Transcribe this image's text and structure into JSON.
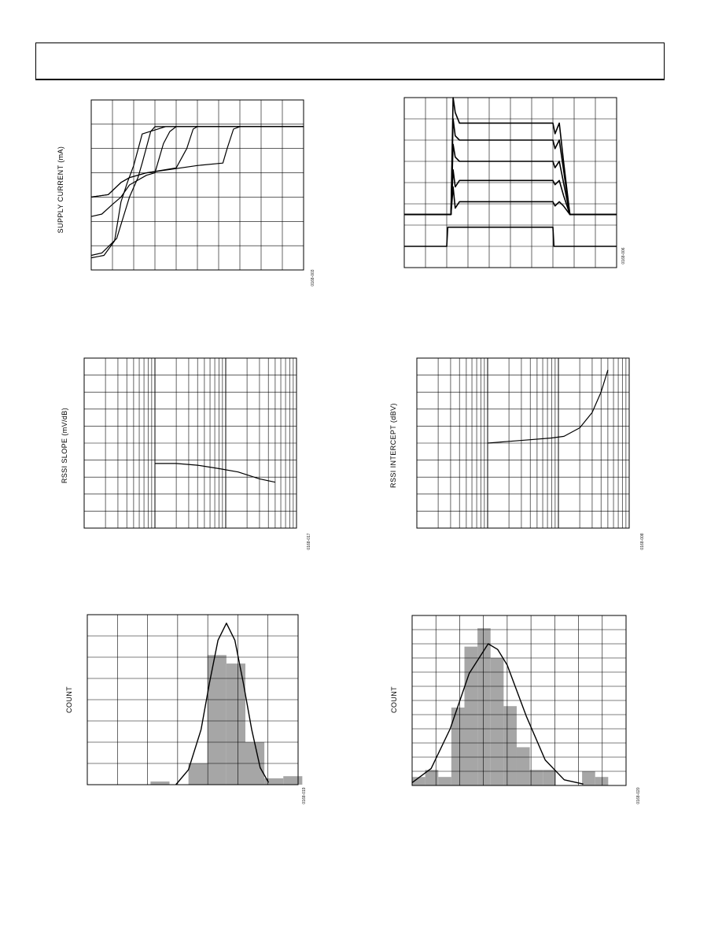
{
  "colors": {
    "ink": "#000000",
    "bar_fill": "#a6a6a6",
    "paper": "#ffffff"
  },
  "charts": [
    {
      "ylabel": "SUPPLY CURRENT (mA)",
      "fignum": "0168-003",
      "chart_data": {
        "type": "line",
        "title": "",
        "xlabel": "",
        "ylabel": "SUPPLY CURRENT (mA)",
        "xlim": [
          0,
          10
        ],
        "ylim": [
          0,
          7
        ],
        "grid": true,
        "series": [
          {
            "x": [
              0.0,
              0.8,
              1.4,
              1.8,
              2.6,
              5.0,
              6.2,
              6.4,
              6.7,
              7.0,
              10.0
            ],
            "y": [
              3.0,
              3.1,
              3.6,
              3.8,
              4.0,
              4.3,
              4.4,
              5.0,
              5.8,
              5.9,
              5.9
            ]
          },
          {
            "x": [
              0.0,
              0.8,
              1.4,
              1.8,
              2.6,
              4.0,
              4.5,
              4.8,
              5.0,
              5.3,
              10.0
            ],
            "y": [
              3.0,
              3.1,
              3.6,
              3.8,
              4.0,
              4.2,
              5.0,
              5.8,
              5.9,
              5.9,
              5.9
            ]
          },
          {
            "x": [
              0.0,
              0.5,
              1.0,
              1.4,
              1.8,
              2.6,
              3.0,
              3.4,
              3.7,
              4.0,
              10.0
            ],
            "y": [
              2.2,
              2.3,
              2.7,
              3.0,
              3.5,
              3.9,
              4.0,
              5.2,
              5.7,
              5.9,
              5.9
            ]
          },
          {
            "x": [
              0.0,
              0.5,
              1.2,
              1.8,
              2.2,
              2.4,
              2.8,
              3.0,
              10.0
            ],
            "y": [
              0.6,
              0.7,
              1.3,
              3.0,
              3.8,
              4.4,
              5.7,
              5.9,
              5.9
            ]
          },
          {
            "x": [
              0.0,
              0.6,
              1.1,
              1.4,
              1.7,
              2.0,
              2.4,
              3.5,
              10.0
            ],
            "y": [
              0.5,
              0.6,
              1.2,
              2.8,
              3.6,
              4.3,
              5.6,
              5.9,
              5.9
            ]
          }
        ]
      }
    },
    {
      "ylabel": "",
      "fignum": "0168-006",
      "chart_data": {
        "type": "line",
        "title": "",
        "xlabel": "",
        "ylabel": "",
        "xlim": [
          0,
          10
        ],
        "ylim": [
          0,
          8
        ],
        "grid": true,
        "series": [
          {
            "x": [
              0.0,
              2.2,
              2.3,
              2.4,
              2.6,
              7.0,
              7.1,
              7.3,
              7.5,
              7.8,
              10.0
            ],
            "y": [
              2.5,
              2.5,
              8.0,
              7.3,
              6.8,
              6.8,
              6.3,
              6.8,
              5.0,
              2.5,
              2.5
            ]
          },
          {
            "x": [
              0.0,
              2.2,
              2.3,
              2.4,
              2.6,
              7.0,
              7.1,
              7.3,
              7.5,
              7.8,
              10.0
            ],
            "y": [
              2.5,
              2.5,
              7.0,
              6.2,
              6.0,
              6.0,
              5.6,
              6.0,
              4.6,
              2.5,
              2.5
            ]
          },
          {
            "x": [
              0.0,
              2.2,
              2.3,
              2.4,
              2.6,
              7.0,
              7.1,
              7.3,
              7.5,
              7.8,
              10.0
            ],
            "y": [
              2.5,
              2.5,
              5.8,
              5.2,
              5.0,
              5.0,
              4.7,
              5.0,
              4.0,
              2.5,
              2.5
            ]
          },
          {
            "x": [
              0.0,
              2.2,
              2.3,
              2.4,
              2.6,
              7.0,
              7.1,
              7.3,
              7.5,
              7.8,
              10.0
            ],
            "y": [
              2.5,
              2.5,
              4.6,
              3.8,
              4.1,
              4.1,
              3.9,
              4.1,
              3.4,
              2.5,
              2.5
            ]
          },
          {
            "x": [
              0.0,
              2.2,
              2.3,
              2.4,
              2.6,
              7.0,
              7.1,
              7.3,
              7.5,
              7.8,
              10.0
            ],
            "y": [
              2.5,
              2.5,
              3.8,
              2.8,
              3.1,
              3.1,
              2.9,
              3.1,
              2.9,
              2.5,
              2.5
            ]
          },
          {
            "x": [
              0.0,
              2.0,
              2.05,
              7.0,
              7.05,
              10.0
            ],
            "y": [
              1.0,
              1.0,
              1.9,
              1.9,
              1.0,
              1.0
            ]
          }
        ]
      }
    },
    {
      "ylabel": "RSSI SLOPE (mV/dB)",
      "fignum": "0168-017",
      "chart_data": {
        "type": "line",
        "title": "",
        "xlabel": "",
        "ylabel": "RSSI SLOPE (mV/dB)",
        "xscale": "log",
        "xlim": [
          1,
          1000
        ],
        "ylim": [
          0,
          10
        ],
        "grid": true,
        "series": [
          {
            "x": [
              10,
              20,
              40,
              80,
              150,
              300,
              500
            ],
            "y": [
              3.8,
              3.8,
              3.7,
              3.5,
              3.3,
              2.9,
              2.7
            ]
          }
        ]
      }
    },
    {
      "ylabel": "RSSI INTERCEPT (dBV)",
      "fignum": "0168-008",
      "chart_data": {
        "type": "line",
        "title": "",
        "xlabel": "",
        "ylabel": "RSSI INTERCEPT (dBV)",
        "xscale": "log",
        "xlim": [
          1,
          1000
        ],
        "ylim": [
          0,
          10
        ],
        "grid": true,
        "series": [
          {
            "x": [
              10,
              20,
              40,
              80,
              120,
              200,
              300,
              400,
              500
            ],
            "y": [
              5.0,
              5.1,
              5.2,
              5.3,
              5.4,
              5.9,
              6.8,
              8.0,
              9.3
            ]
          }
        ]
      }
    },
    {
      "ylabel": "COUNT",
      "fignum": "0168-019",
      "chart_data": {
        "type": "bar",
        "title": "",
        "xlabel": "",
        "ylabel": "COUNT",
        "xlim": [
          0,
          10
        ],
        "ylim": [
          0,
          8
        ],
        "grid": true,
        "bin_width": 0.9,
        "bins": [
          3.0,
          3.9,
          4.8,
          5.7,
          6.6,
          7.5,
          8.4,
          9.3
        ],
        "values": [
          0.15,
          0.0,
          1.0,
          6.1,
          5.7,
          2.0,
          0.3,
          0.4
        ],
        "curve": {
          "x": [
            4.2,
            4.8,
            5.4,
            5.8,
            6.2,
            6.6,
            7.0,
            7.4,
            7.8,
            8.2,
            8.6
          ],
          "y": [
            0.0,
            0.7,
            2.6,
            4.8,
            6.8,
            7.6,
            6.8,
            4.8,
            2.6,
            0.8,
            0.1
          ]
        }
      }
    },
    {
      "ylabel": "COUNT",
      "fignum": "0168-020",
      "chart_data": {
        "type": "bar",
        "title": "",
        "xlabel": "",
        "ylabel": "COUNT",
        "xlim": [
          0,
          9
        ],
        "ylim": [
          0,
          12
        ],
        "grid": true,
        "bin_width": 0.55,
        "bins": [
          0.0,
          0.55,
          1.1,
          1.65,
          2.2,
          2.75,
          3.3,
          3.85,
          4.4,
          4.95,
          5.5,
          6.05,
          6.6,
          7.15,
          7.7
        ],
        "values": [
          0.6,
          1.1,
          0.6,
          5.5,
          9.8,
          11.1,
          9.0,
          5.6,
          2.7,
          1.1,
          1.1,
          0.0,
          0.0,
          1.0,
          0.6
        ],
        "curve": {
          "x": [
            0.0,
            0.8,
            1.6,
            2.4,
            3.2,
            3.6,
            4.0,
            4.8,
            5.6,
            6.4,
            7.2
          ],
          "y": [
            0.2,
            1.2,
            4.0,
            7.9,
            10.0,
            9.6,
            8.5,
            4.9,
            1.8,
            0.4,
            0.1
          ]
        }
      }
    }
  ]
}
